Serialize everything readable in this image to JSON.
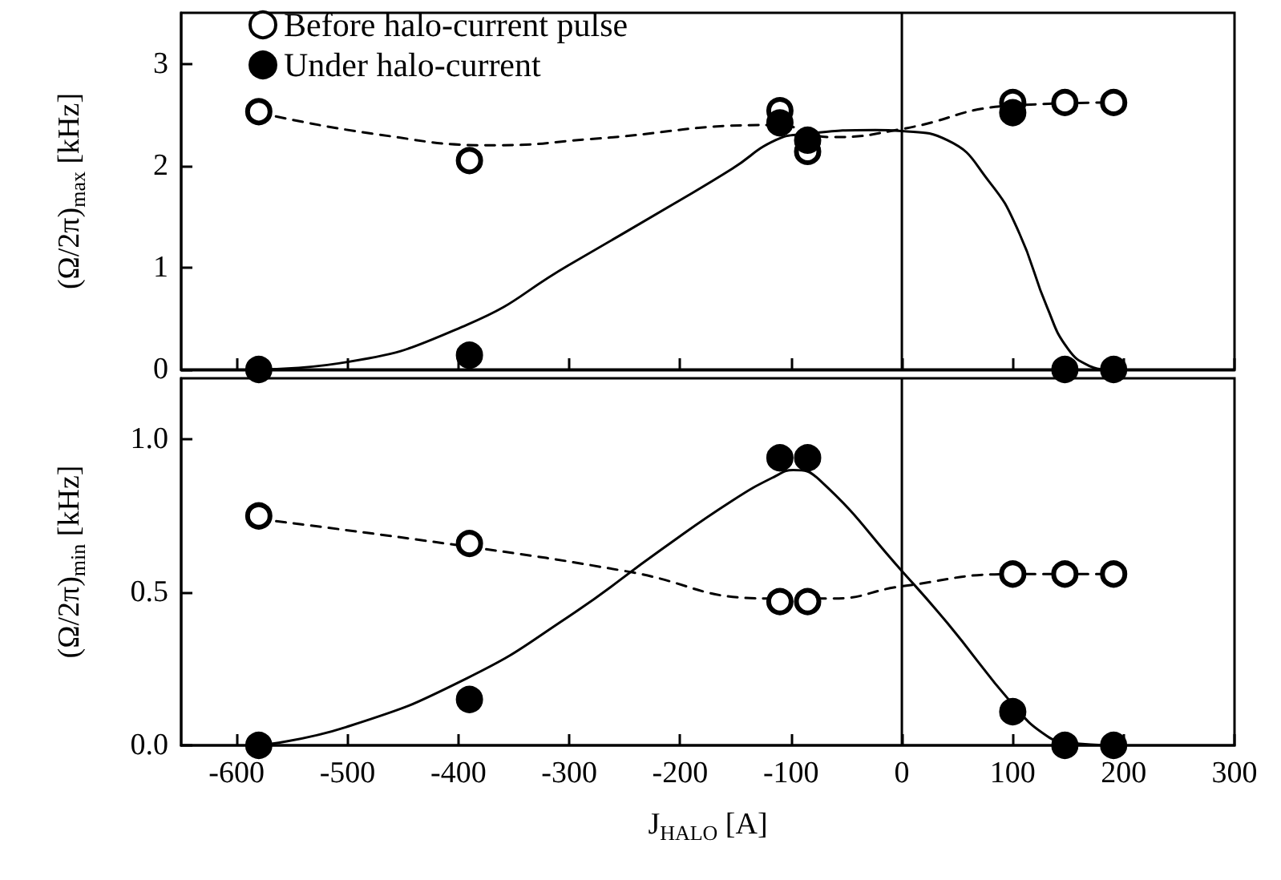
{
  "chart_data": [
    {
      "type": "scatter",
      "ylabel": "(Ω/2π)$_{max}$ [kHz]",
      "xlim": [
        -650,
        300
      ],
      "xticks": [
        -600,
        -500,
        -400,
        -300,
        -200,
        -100,
        0,
        100,
        200,
        300
      ],
      "ylim": [
        0,
        3.5
      ],
      "yticks": [
        0,
        1,
        2,
        3
      ],
      "tick_labels": "y",
      "legend": "top left",
      "ref_lines": [
        {
          "axis": "x",
          "value": 0,
          "color": "#000000"
        }
      ],
      "series": [
        {
          "name": "Before halo-current pulse",
          "marker": "circle",
          "color": "#ffffff",
          "x": [
            -580,
            -390,
            -110,
            -85,
            100,
            147,
            191
          ],
          "values": [
            2.53,
            2.05,
            2.54,
            2.14,
            2.62,
            2.62,
            2.62
          ]
        },
        {
          "name": "Under halo-current",
          "marker": "circle",
          "color": "#000000",
          "x": [
            -580,
            -390,
            -110,
            -85,
            100,
            147,
            191
          ],
          "values": [
            0,
            0.14,
            2.42,
            2.25,
            2.52,
            0,
            0
          ]
        },
        {
          "type": "line",
          "line_style": "dashed",
          "color": "#000000",
          "x": [
            -580,
            -475,
            -366,
            -282,
            -114,
            -63,
            0,
            99,
            191
          ],
          "values": [
            2.52,
            2.31,
            2.2,
            2.26,
            2.4,
            2.28,
            2.36,
            2.59,
            2.62
          ]
        },
        {
          "type": "line",
          "line_style": "solid",
          "color": "#000000",
          "x": [
            -580,
            -508,
            -392,
            -301,
            -205,
            -153,
            -114,
            -88,
            -24,
            0,
            41,
            79,
            105,
            131,
            150,
            170,
            183
          ],
          "values": [
            0,
            0.06,
            0.44,
            1.02,
            1.63,
            1.97,
            2.25,
            2.31,
            2.35,
            2.34,
            2.25,
            1.84,
            1.36,
            0.61,
            0.2,
            0.03,
            0
          ]
        }
      ]
    },
    {
      "type": "scatter",
      "ylabel": "(Ω/2π)$_{min}$ [kHz]",
      "xlabel": "J$_{HALO}$ [A]",
      "xlim": [
        -650,
        300
      ],
      "xticks": [
        -600,
        -500,
        -400,
        -300,
        -200,
        -100,
        0,
        100,
        200,
        300
      ],
      "ylim": [
        0,
        1.2
      ],
      "yticks": [
        {
          "value": 0,
          "label": "0.0"
        },
        0.5,
        {
          "value": 1,
          "label": "1.0"
        }
      ],
      "ref_lines": [
        {
          "axis": "x",
          "value": 0,
          "color": "#000000"
        }
      ],
      "series": [
        {
          "marker": "circle",
          "color": "#ffffff",
          "x": [
            -580,
            -390,
            -110,
            -85,
            100,
            147,
            191
          ],
          "values": [
            0.75,
            0.66,
            0.47,
            0.47,
            0.56,
            0.56,
            0.56
          ]
        },
        {
          "marker": "circle",
          "color": "#000000",
          "x": [
            -580,
            -390,
            -110,
            -85,
            100,
            147,
            191
          ],
          "values": [
            0,
            0.15,
            0.94,
            0.94,
            0.11,
            0,
            0
          ]
        },
        {
          "type": "line",
          "line_style": "dashed",
          "color": "#000000",
          "x": [
            -580,
            -392,
            -250,
            -121,
            -63,
            0,
            101,
            191
          ],
          "values": [
            0.74,
            0.65,
            0.57,
            0.48,
            0.48,
            0.52,
            0.56,
            0.56
          ]
        },
        {
          "type": "line",
          "line_style": "solid",
          "color": "#000000",
          "x": [
            -580,
            -501,
            -392,
            -301,
            -217,
            -153,
            -114,
            -98,
            -75,
            0,
            41,
            101,
            131,
            150,
            191
          ],
          "values": [
            0,
            0.06,
            0.22,
            0.42,
            0.64,
            0.8,
            0.88,
            0.9,
            0.87,
            0.57,
            0.4,
            0.13,
            0.03,
            0.01,
            0
          ]
        }
      ]
    }
  ]
}
